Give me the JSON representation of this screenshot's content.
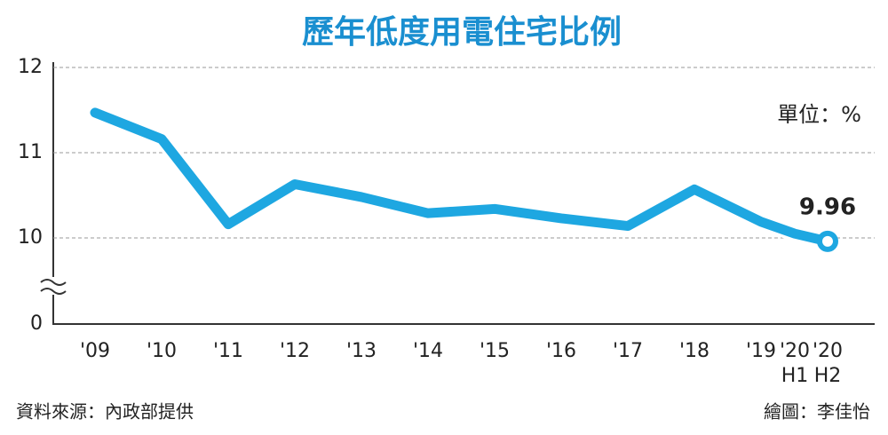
{
  "chart_data": {
    "type": "line",
    "title": "歷年低度用電住宅比例",
    "unit_label": "單位：%",
    "source": "資料來源：內政部提供",
    "credit": "繪圖：李佳怡",
    "categories": [
      "'09",
      "'10",
      "'11",
      "'12",
      "'13",
      "'14",
      "'15",
      "'16",
      "'17",
      "'18",
      "'19",
      "'20 H1",
      "'20 H2"
    ],
    "series": [
      {
        "color": "#1ea7e1",
        "values": [
          11.47,
          11.16,
          10.16,
          10.63,
          10.48,
          10.29,
          10.34,
          10.23,
          10.14,
          10.57,
          10.19,
          10.05,
          9.96
        ],
        "value_labels": [
          null,
          null,
          null,
          null,
          null,
          null,
          null,
          null,
          null,
          null,
          null,
          null,
          "9.96"
        ]
      }
    ],
    "ylim": [
      9,
      12
    ],
    "yticks": [
      10,
      11,
      12
    ],
    "axis_break": {
      "value": 0
    },
    "grid": true
  }
}
